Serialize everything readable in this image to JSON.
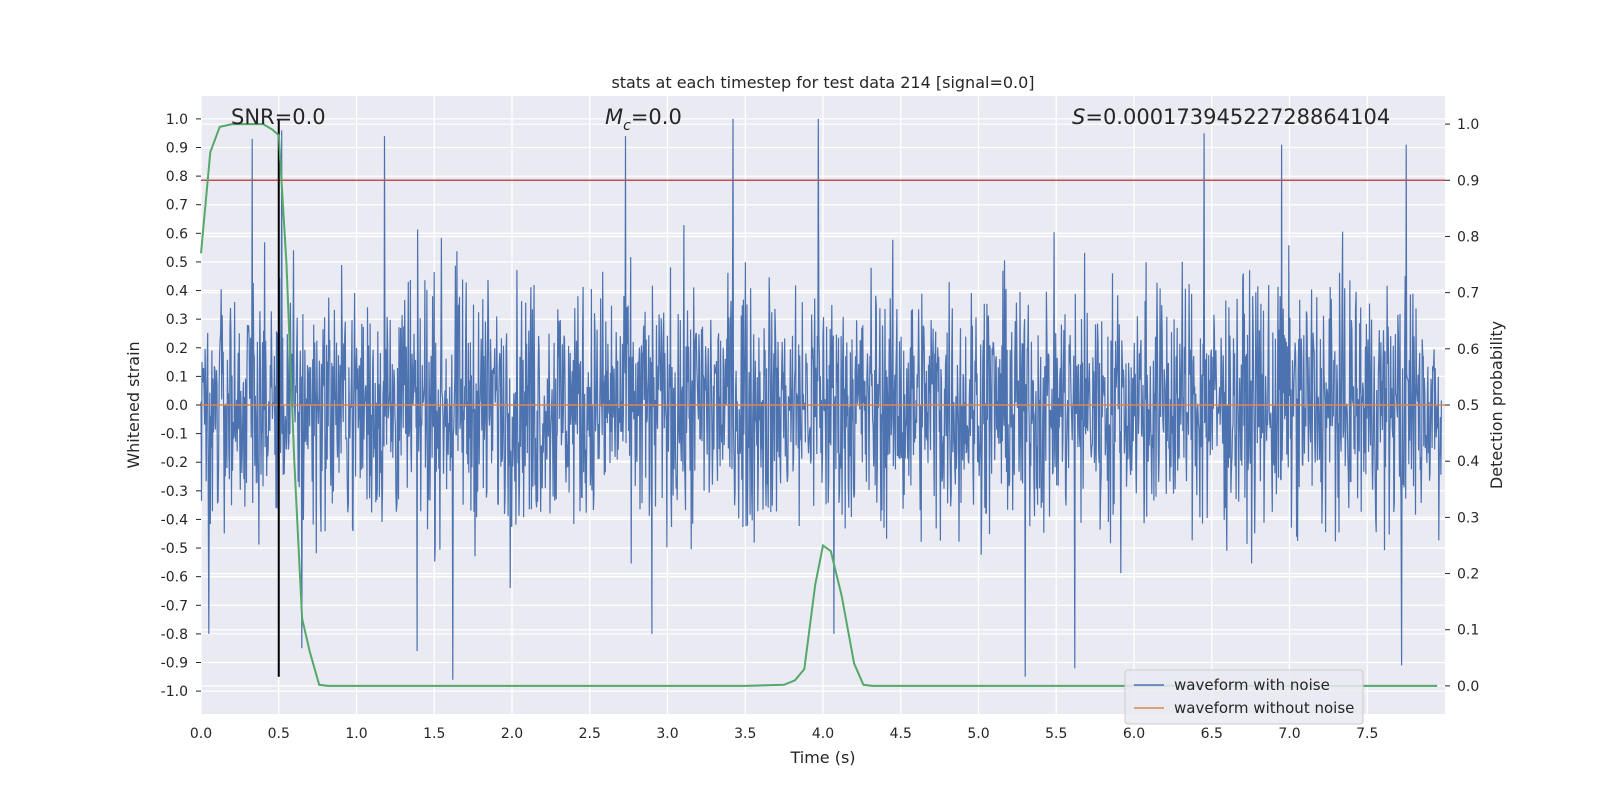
{
  "chart_data": {
    "type": "line",
    "title": "stats at each timestep for test data 214 [signal=0.0]",
    "xlabel": "Time (s)",
    "ylabel_left": "Whitened strain",
    "ylabel_right": "Detection probability",
    "xlim": [
      0.0,
      8.0
    ],
    "ylim_left": [
      -1.08,
      1.08
    ],
    "ylim_right": [
      -0.05,
      1.05
    ],
    "x_ticks": [
      "0.0",
      "0.5",
      "1.0",
      "1.5",
      "2.0",
      "2.5",
      "3.0",
      "3.5",
      "4.0",
      "4.5",
      "5.0",
      "5.5",
      "6.0",
      "6.5",
      "7.0",
      "7.5"
    ],
    "y_ticks_left": [
      "1.0",
      "0.9",
      "0.8",
      "0.7",
      "0.6",
      "0.5",
      "0.4",
      "0.3",
      "0.2",
      "0.1",
      "0.0",
      "-0.1",
      "-0.2",
      "-0.3",
      "-0.4",
      "-0.5",
      "-0.6",
      "-0.7",
      "-0.8",
      "-0.9",
      "-1.0"
    ],
    "y_ticks_right": [
      "1.0",
      "0.9",
      "0.8",
      "0.7",
      "0.6",
      "0.5",
      "0.4",
      "0.3",
      "0.2",
      "0.1",
      "0.0"
    ],
    "annotations": {
      "snr": "SNR=0.0",
      "mc_symbol": "M",
      "mc_sub": "c",
      "mc_value": "=0.0",
      "s_symbol": "S",
      "s_value": "=0.00017394522728864104"
    },
    "threshold": {
      "axis": "right",
      "value": 0.9
    },
    "marker_line": {
      "x": 0.5,
      "y_from": -0.95,
      "y_to": 1.0
    },
    "series": [
      {
        "name": "waveform with noise",
        "axis": "left",
        "color": "#4c72b0",
        "description": "dense noise trace; envelope approx max 0.4-1.0, min -0.4 to -0.95",
        "peaks": [
          {
            "x": 0.33,
            "y": 0.93
          },
          {
            "x": 0.52,
            "y": 0.96
          },
          {
            "x": 1.18,
            "y": 0.94
          },
          {
            "x": 2.73,
            "y": 0.94
          },
          {
            "x": 3.42,
            "y": 1.0
          },
          {
            "x": 3.97,
            "y": 1.0
          },
          {
            "x": 6.45,
            "y": 0.95
          },
          {
            "x": 6.95,
            "y": 0.91
          },
          {
            "x": 7.75,
            "y": 0.91
          }
        ],
        "troughs": [
          {
            "x": 0.05,
            "y": -0.8
          },
          {
            "x": 0.65,
            "y": -0.85
          },
          {
            "x": 1.39,
            "y": -0.86
          },
          {
            "x": 1.62,
            "y": -0.96
          },
          {
            "x": 2.9,
            "y": -0.8
          },
          {
            "x": 4.07,
            "y": -0.8
          },
          {
            "x": 5.3,
            "y": -0.95
          },
          {
            "x": 5.62,
            "y": -0.92
          },
          {
            "x": 7.72,
            "y": -0.91
          }
        ]
      },
      {
        "name": "waveform without noise",
        "axis": "left",
        "color": "#dd8452",
        "x": [
          0.0,
          8.0
        ],
        "y": [
          0.0,
          0.0
        ]
      },
      {
        "name": "detection probability",
        "axis": "right",
        "color": "#55a868",
        "x": [
          0.0,
          0.06,
          0.12,
          0.2,
          0.3,
          0.4,
          0.46,
          0.5,
          0.55,
          0.6,
          0.65,
          0.7,
          0.76,
          0.82,
          1.0,
          2.0,
          3.0,
          3.5,
          3.75,
          3.82,
          3.88,
          3.95,
          4.0,
          4.05,
          4.12,
          4.2,
          4.26,
          4.32,
          5.0,
          6.0,
          7.0,
          7.95
        ],
        "y": [
          0.77,
          0.95,
          0.995,
          1.0,
          1.0,
          1.0,
          0.99,
          0.98,
          0.75,
          0.4,
          0.12,
          0.06,
          0.002,
          0.0,
          0.0,
          0.0,
          0.0,
          0.0,
          0.002,
          0.01,
          0.03,
          0.18,
          0.25,
          0.24,
          0.16,
          0.04,
          0.002,
          0.0,
          0.0,
          0.0,
          0.0,
          0.0
        ]
      }
    ],
    "legend": {
      "placement": "lower-right",
      "entries": [
        {
          "label": "waveform with noise",
          "color": "#4c72b0"
        },
        {
          "label": "waveform without noise",
          "color": "#dd8452"
        }
      ]
    },
    "style": {
      "background": "#eaeaf2",
      "grid": "#ffffff",
      "threshold_color": "#c44e52",
      "marker_color": "#000000"
    }
  }
}
